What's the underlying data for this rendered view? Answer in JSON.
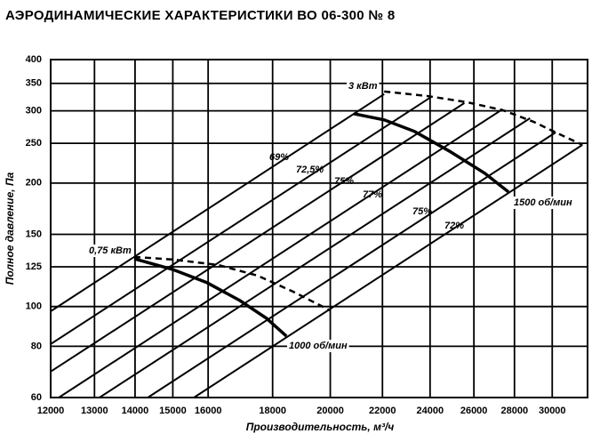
{
  "chart_data": {
    "type": "line",
    "title": "АЭРОДИНАМИЧЕСКИЕ ХАРАКТЕРИСТИКИ ВО 06-300 № 8",
    "xlabel": "Производительность, м³/ч",
    "ylabel": "Полное давление, Па",
    "log_x": true,
    "log_y": true,
    "grid": true,
    "color": "#000000",
    "xlim": [
      12000,
      32000
    ],
    "xticks": [
      12000,
      13000,
      14000,
      15000,
      16000,
      18000,
      20000,
      22000,
      24000,
      26000,
      28000,
      30000
    ],
    "ylim": [
      60,
      400
    ],
    "yticks": [
      60,
      80,
      100,
      125,
      150,
      200,
      250,
      300,
      350,
      400
    ],
    "series": [
      {
        "x": [
          12000,
          22070
        ],
        "values": [
          97.4,
          329.6
        ]
      },
      {
        "x": [
          12000,
          24060
        ],
        "values": [
          81.0,
          324.6
        ]
      },
      {
        "x": [
          12000,
          25550
        ],
        "values": [
          69.4,
          313.4
        ]
      },
      {
        "x": [
          12180,
          27400
        ],
        "values": [
          60,
          302.7
        ]
      },
      {
        "x": [
          13120,
          28810
        ],
        "values": [
          60,
          287.9
        ]
      },
      {
        "x": [
          14330,
          30190
        ],
        "values": [
          60,
          265.8
        ]
      },
      {
        "x": [
          15590,
          31700
        ],
        "values": [
          60,
          247.8
        ]
      },
      {
        "name": "1000 об/мин",
        "width": 3.5,
        "x": [
          13980,
          14990,
          15970,
          16960,
          17800,
          18460
        ],
        "values": [
          130.8,
          123.2,
          114.3,
          103.4,
          93.6,
          84.7
        ]
      },
      {
        "name": "1500 об/мин",
        "width": 3.5,
        "x": [
          20880,
          22070,
          23330,
          24850,
          26520,
          27700
        ],
        "values": [
          295.2,
          285.1,
          267.2,
          239.4,
          211.3,
          190.2
        ]
      },
      {
        "name": "0,75 кВт",
        "dashed": true,
        "x": [
          13980,
          14990,
          16290,
          17520,
          18690,
          19980
        ],
        "values": [
          132.1,
          130.2,
          126.3,
          118.9,
          108.7,
          97.9
        ]
      },
      {
        "name": "3 кВт",
        "dashed": true,
        "x": [
          22070,
          23860,
          25670,
          27400,
          28990,
          30190,
          31700
        ],
        "values": [
          334.4,
          326.2,
          315.0,
          301.3,
          282.2,
          265.8,
          247.8
        ]
      }
    ],
    "annotations": [
      "69%",
      "72,5%",
      "75%",
      "77%",
      "75%",
      "72%"
    ]
  }
}
